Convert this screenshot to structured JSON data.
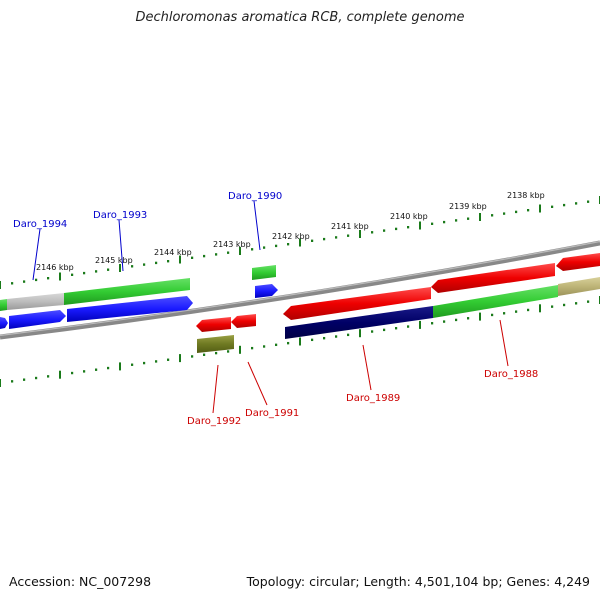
{
  "title": "Dechloromonas aromatica RCB, complete genome",
  "footer": {
    "accession": "Accession: NC_007298",
    "topology": "Topology: circular; Length: 4,501,104 bp; Genes: 4,249"
  },
  "scale_labels": [
    "2146 kbp",
    "2145 kbp",
    "2144 kbp",
    "2143 kbp",
    "2142 kbp",
    "2141 kbp",
    "2140 kbp",
    "2139 kbp",
    "2138 kbp"
  ],
  "gene_labels": {
    "daro_1994": "Daro_1994",
    "daro_1993": "Daro_1993",
    "daro_1990": "Daro_1990",
    "daro_1992": "Daro_1992",
    "daro_1991": "Daro_1991",
    "daro_1989": "Daro_1989",
    "daro_1988": "Daro_1988"
  },
  "colors": {
    "forward_label": "#0000cc",
    "reverse_label": "#cc0000",
    "tick": "#1a7a1a",
    "backbone": "#808080"
  }
}
